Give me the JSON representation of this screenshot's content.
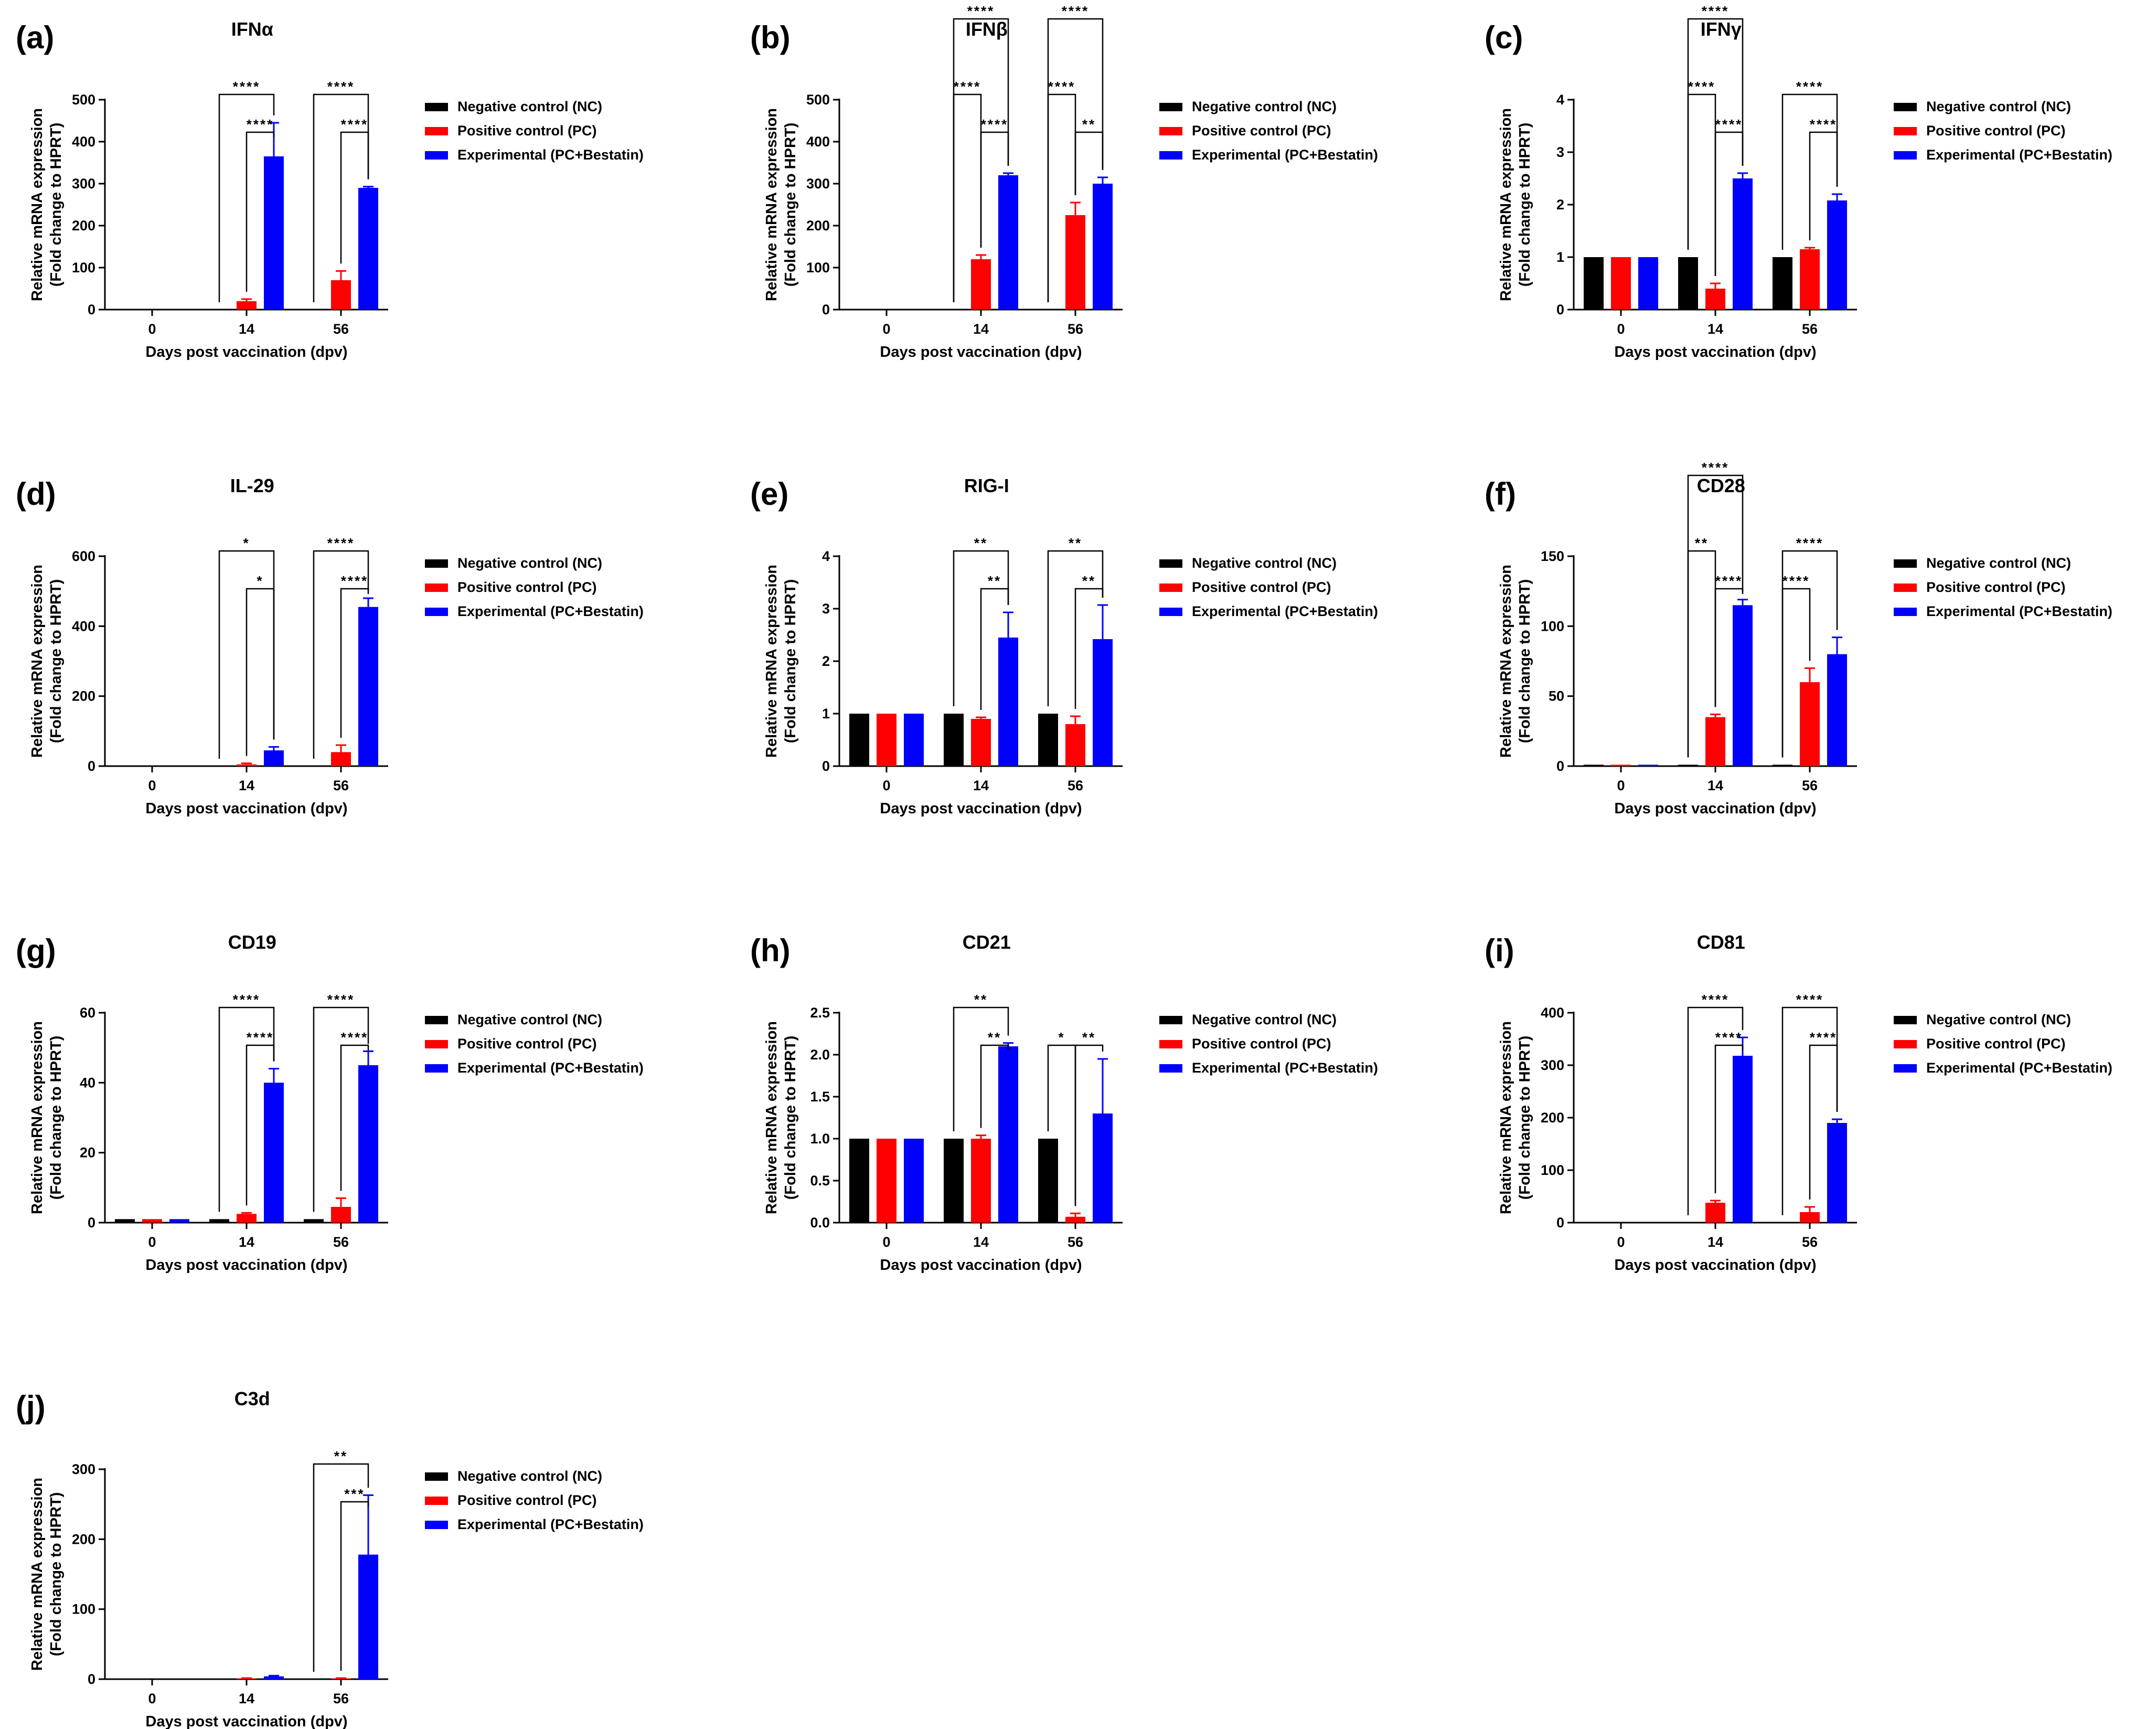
{
  "colors": {
    "nc": "#000000",
    "pc": "#ff0000",
    "exp": "#0000ff"
  },
  "chart_data": [
    {
      "letter": "(a)",
      "title": "IFNα",
      "type": "bar",
      "ylabel": [
        "Relative mRNA expression",
        "(Fold change to HPRT)"
      ],
      "xlabel": "Days post vaccination (dpv)",
      "categories": [
        "0",
        "14",
        "56"
      ],
      "ylim": [
        0,
        500
      ],
      "yticks": [
        0,
        100,
        200,
        300,
        400,
        500
      ],
      "ytick_labels": [
        "0",
        "100",
        "200",
        "300",
        "400",
        "500"
      ],
      "series": [
        {
          "name": "Negative control (NC)",
          "values": [
            0,
            0,
            0
          ],
          "errors": [
            0,
            0,
            0
          ]
        },
        {
          "name": "Positive control (PC)",
          "values": [
            0,
            20,
            70
          ],
          "errors": [
            0,
            5,
            22
          ]
        },
        {
          "name": "Experimental (PC+Bestatin)",
          "values": [
            0,
            365,
            290
          ],
          "errors": [
            0,
            80,
            3
          ]
        }
      ],
      "significance": [
        {
          "group": 1,
          "from": 0,
          "to": 2,
          "level": 1,
          "label": "****"
        },
        {
          "group": 1,
          "from": 1,
          "to": 2,
          "level": 0,
          "label": "****"
        },
        {
          "group": 2,
          "from": 0,
          "to": 2,
          "level": 1,
          "label": "****"
        },
        {
          "group": 2,
          "from": 1,
          "to": 2,
          "level": 0,
          "label": "****"
        }
      ],
      "legend": [
        "Negative control (NC)",
        "Positive control (PC)",
        "Experimental (PC+Bestatin)"
      ]
    },
    {
      "letter": "(b)",
      "title": "IFNβ",
      "type": "bar",
      "ylabel": [
        "Relative mRNA expression",
        "(Fold change to HPRT)"
      ],
      "xlabel": "Days post vaccination (dpv)",
      "categories": [
        "0",
        "14",
        "56"
      ],
      "ylim": [
        0,
        500
      ],
      "yticks": [
        0,
        100,
        200,
        300,
        400,
        500
      ],
      "ytick_labels": [
        "0",
        "100",
        "200",
        "300",
        "400",
        "500"
      ],
      "series": [
        {
          "name": "Negative control (NC)",
          "values": [
            0,
            0,
            0
          ],
          "errors": [
            0,
            0,
            0
          ]
        },
        {
          "name": "Positive control (PC)",
          "values": [
            0,
            120,
            225
          ],
          "errors": [
            0,
            10,
            30
          ]
        },
        {
          "name": "Experimental (PC+Bestatin)",
          "values": [
            0,
            320,
            300
          ],
          "errors": [
            0,
            5,
            15
          ]
        }
      ],
      "significance": [
        {
          "group": 1,
          "from": 0,
          "to": 2,
          "level": 2,
          "label": "****"
        },
        {
          "group": 1,
          "from": 0,
          "to": 1,
          "level": 1,
          "label": "****"
        },
        {
          "group": 1,
          "from": 1,
          "to": 2,
          "level": 0,
          "label": "****"
        },
        {
          "group": 2,
          "from": 0,
          "to": 2,
          "level": 2,
          "label": "****"
        },
        {
          "group": 2,
          "from": 0,
          "to": 1,
          "level": 1,
          "label": "****"
        },
        {
          "group": 2,
          "from": 1,
          "to": 2,
          "level": 0,
          "label": "**"
        }
      ],
      "legend": [
        "Negative control (NC)",
        "Positive control (PC)",
        "Experimental (PC+Bestatin)"
      ]
    },
    {
      "letter": "(c)",
      "title": "IFNγ",
      "type": "bar",
      "ylabel": [
        "Relative mRNA expression",
        "(Fold change to HPRT)"
      ],
      "xlabel": "Days post vaccination (dpv)",
      "categories": [
        "0",
        "14",
        "56"
      ],
      "ylim": [
        0,
        4
      ],
      "yticks": [
        0,
        1,
        2,
        3,
        4
      ],
      "ytick_labels": [
        "0",
        "1",
        "2",
        "3",
        "4"
      ],
      "series": [
        {
          "name": "Negative control (NC)",
          "values": [
            1,
            1,
            1
          ],
          "errors": [
            0,
            0,
            0
          ]
        },
        {
          "name": "Positive control (PC)",
          "values": [
            1,
            0.4,
            1.15
          ],
          "errors": [
            0,
            0.1,
            0.03
          ]
        },
        {
          "name": "Experimental (PC+Bestatin)",
          "values": [
            1,
            2.5,
            2.08
          ],
          "errors": [
            0,
            0.1,
            0.12
          ]
        }
      ],
      "significance": [
        {
          "group": 1,
          "from": 0,
          "to": 2,
          "level": 2,
          "label": "****"
        },
        {
          "group": 1,
          "from": 0,
          "to": 1,
          "level": 1,
          "label": "****"
        },
        {
          "group": 1,
          "from": 1,
          "to": 2,
          "level": 0,
          "label": "****"
        },
        {
          "group": 2,
          "from": 0,
          "to": 2,
          "level": 1,
          "label": "****"
        },
        {
          "group": 2,
          "from": 1,
          "to": 2,
          "level": 0,
          "label": "****"
        }
      ],
      "legend": [
        "Negative control (NC)",
        "Positive control (PC)",
        "Experimental (PC+Bestatin)"
      ]
    },
    {
      "letter": "(d)",
      "title": "IL-29",
      "type": "bar",
      "ylabel": [
        "Relative mRNA expression",
        "(Fold change to HPRT)"
      ],
      "xlabel": "Days post vaccination (dpv)",
      "categories": [
        "0",
        "14",
        "56"
      ],
      "ylim": [
        0,
        600
      ],
      "yticks": [
        0,
        200,
        400,
        600
      ],
      "ytick_labels": [
        "0",
        "200",
        "400",
        "600"
      ],
      "series": [
        {
          "name": "Negative control (NC)",
          "values": [
            0,
            0,
            0
          ],
          "errors": [
            0,
            0,
            0
          ]
        },
        {
          "name": "Positive control (PC)",
          "values": [
            0,
            5,
            40
          ],
          "errors": [
            0,
            3,
            20
          ]
        },
        {
          "name": "Experimental (PC+Bestatin)",
          "values": [
            0,
            45,
            455
          ],
          "errors": [
            0,
            10,
            25
          ]
        }
      ],
      "significance": [
        {
          "group": 1,
          "from": 0,
          "to": 2,
          "level": 1,
          "label": "*"
        },
        {
          "group": 1,
          "from": 1,
          "to": 2,
          "level": 0,
          "label": "*"
        },
        {
          "group": 2,
          "from": 0,
          "to": 2,
          "level": 1,
          "label": "****"
        },
        {
          "group": 2,
          "from": 1,
          "to": 2,
          "level": 0,
          "label": "****"
        }
      ],
      "legend": [
        "Negative control (NC)",
        "Positive control (PC)",
        "Experimental (PC+Bestatin)"
      ]
    },
    {
      "letter": "(e)",
      "title": "RIG-I",
      "type": "bar",
      "ylabel": [
        "Relative mRNA expression",
        "(Fold change to HPRT)"
      ],
      "xlabel": "Days post vaccination (dpv)",
      "categories": [
        "0",
        "14",
        "56"
      ],
      "ylim": [
        0,
        4
      ],
      "yticks": [
        0,
        1,
        2,
        3,
        4
      ],
      "ytick_labels": [
        "0",
        "1",
        "2",
        "3",
        "4"
      ],
      "series": [
        {
          "name": "Negative control (NC)",
          "values": [
            1,
            1,
            1
          ],
          "errors": [
            0,
            0,
            0
          ]
        },
        {
          "name": "Positive control (PC)",
          "values": [
            1,
            0.9,
            0.8
          ],
          "errors": [
            0,
            0.03,
            0.15
          ]
        },
        {
          "name": "Experimental (PC+Bestatin)",
          "values": [
            1,
            2.45,
            2.42
          ],
          "errors": [
            0,
            0.48,
            0.65
          ]
        }
      ],
      "significance": [
        {
          "group": 1,
          "from": 0,
          "to": 2,
          "level": 1,
          "label": "**"
        },
        {
          "group": 1,
          "from": 1,
          "to": 2,
          "level": 0,
          "label": "**"
        },
        {
          "group": 2,
          "from": 0,
          "to": 2,
          "level": 1,
          "label": "**"
        },
        {
          "group": 2,
          "from": 1,
          "to": 2,
          "level": 0,
          "label": "**"
        }
      ],
      "legend": [
        "Negative control (NC)",
        "Positive control (PC)",
        "Experimental (PC+Bestatin)"
      ]
    },
    {
      "letter": "(f)",
      "title": "CD28",
      "type": "bar",
      "ylabel": [
        "Relative mRNA expression",
        "(Fold change to HPRT)"
      ],
      "xlabel": "Days post vaccination (dpv)",
      "categories": [
        "0",
        "14",
        "56"
      ],
      "ylim": [
        0,
        150
      ],
      "yticks": [
        0,
        50,
        100,
        150
      ],
      "ytick_labels": [
        "0",
        "50",
        "100",
        "150"
      ],
      "series": [
        {
          "name": "Negative control (NC)",
          "values": [
            1,
            1,
            1
          ],
          "errors": [
            0,
            0,
            0
          ]
        },
        {
          "name": "Positive control (PC)",
          "values": [
            1,
            35,
            60
          ],
          "errors": [
            0,
            2,
            10
          ]
        },
        {
          "name": "Experimental (PC+Bestatin)",
          "values": [
            1,
            115,
            80
          ],
          "errors": [
            0,
            4,
            12
          ]
        }
      ],
      "significance": [
        {
          "group": 1,
          "from": 0,
          "to": 2,
          "level": 2,
          "label": "****"
        },
        {
          "group": 1,
          "from": 0,
          "to": 1,
          "level": 1,
          "label": "**"
        },
        {
          "group": 1,
          "from": 1,
          "to": 2,
          "level": 0,
          "label": "****"
        },
        {
          "group": 2,
          "from": 0,
          "to": 2,
          "level": 1,
          "label": "****"
        },
        {
          "group": 2,
          "from": 0,
          "to": 1,
          "level": 0,
          "label": "****"
        }
      ],
      "legend": [
        "Negative control (NC)",
        "Positive control (PC)",
        "Experimental (PC+Bestatin)"
      ]
    },
    {
      "letter": "(g)",
      "title": "CD19",
      "type": "bar",
      "ylabel": [
        "Relative mRNA expression",
        "(Fold change to HPRT)"
      ],
      "xlabel": "Days post vaccination (dpv)",
      "categories": [
        "0",
        "14",
        "56"
      ],
      "ylim": [
        0,
        60
      ],
      "yticks": [
        0,
        20,
        40,
        60
      ],
      "ytick_labels": [
        "0",
        "20",
        "40",
        "60"
      ],
      "series": [
        {
          "name": "Negative control (NC)",
          "values": [
            1,
            1,
            1
          ],
          "errors": [
            0,
            0,
            0
          ]
        },
        {
          "name": "Positive control (PC)",
          "values": [
            1,
            2.5,
            4.5
          ],
          "errors": [
            0,
            0.3,
            2.5
          ]
        },
        {
          "name": "Experimental (PC+Bestatin)",
          "values": [
            1,
            40,
            45
          ],
          "errors": [
            0,
            4,
            4
          ]
        }
      ],
      "significance": [
        {
          "group": 1,
          "from": 0,
          "to": 2,
          "level": 1,
          "label": "****"
        },
        {
          "group": 1,
          "from": 1,
          "to": 2,
          "level": 0,
          "label": "****"
        },
        {
          "group": 2,
          "from": 0,
          "to": 2,
          "level": 1,
          "label": "****"
        },
        {
          "group": 2,
          "from": 1,
          "to": 2,
          "level": 0,
          "label": "****"
        }
      ],
      "legend": [
        "Negative control (NC)",
        "Positive control (PC)",
        "Experimental (PC+Bestatin)"
      ]
    },
    {
      "letter": "(h)",
      "title": "CD21",
      "type": "bar",
      "ylabel": [
        "Relative mRNA expression",
        "(Fold change to HPRT)"
      ],
      "xlabel": "Days post vaccination (dpv)",
      "categories": [
        "0",
        "14",
        "56"
      ],
      "ylim": [
        0,
        2.5
      ],
      "yticks": [
        0,
        0.5,
        1,
        1.5,
        2,
        2.5
      ],
      "ytick_labels": [
        "0.0",
        "0.5",
        "1.0",
        "1.5",
        "2.0",
        "2.5"
      ],
      "series": [
        {
          "name": "Negative control (NC)",
          "values": [
            1,
            1,
            1
          ],
          "errors": [
            0,
            0,
            0
          ]
        },
        {
          "name": "Positive control (PC)",
          "values": [
            1,
            1.0,
            0.07
          ],
          "errors": [
            0,
            0.04,
            0.04
          ]
        },
        {
          "name": "Experimental (PC+Bestatin)",
          "values": [
            1,
            2.1,
            1.3
          ],
          "errors": [
            0,
            0.04,
            0.65
          ]
        }
      ],
      "significance": [
        {
          "group": 1,
          "from": 0,
          "to": 2,
          "level": 1,
          "label": "**"
        },
        {
          "group": 1,
          "from": 1,
          "to": 2,
          "level": 0,
          "label": "**"
        },
        {
          "group": 2,
          "from": 0,
          "to": 1,
          "level": 0,
          "label": "*"
        },
        {
          "group": 2,
          "from": 1,
          "to": 2,
          "level": 0,
          "label": "**"
        }
      ],
      "legend": [
        "Negative control (NC)",
        "Positive control (PC)",
        "Experimental (PC+Bestatin)"
      ]
    },
    {
      "letter": "(i)",
      "title": "CD81",
      "type": "bar",
      "ylabel": [
        "Relative mRNA expression",
        "(Fold change to HPRT)"
      ],
      "xlabel": "Days post vaccination (dpv)",
      "categories": [
        "0",
        "14",
        "56"
      ],
      "ylim": [
        0,
        400
      ],
      "yticks": [
        0,
        100,
        200,
        300,
        400
      ],
      "ytick_labels": [
        "0",
        "100",
        "200",
        "300",
        "400"
      ],
      "series": [
        {
          "name": "Negative control (NC)",
          "values": [
            0,
            0,
            0
          ],
          "errors": [
            0,
            0,
            0
          ]
        },
        {
          "name": "Positive control (PC)",
          "values": [
            0,
            38,
            20
          ],
          "errors": [
            0,
            4,
            10
          ]
        },
        {
          "name": "Experimental (PC+Bestatin)",
          "values": [
            0,
            318,
            190
          ],
          "errors": [
            0,
            35,
            7
          ]
        }
      ],
      "significance": [
        {
          "group": 1,
          "from": 0,
          "to": 2,
          "level": 1,
          "label": "****"
        },
        {
          "group": 1,
          "from": 1,
          "to": 2,
          "level": 0,
          "label": "****"
        },
        {
          "group": 2,
          "from": 0,
          "to": 2,
          "level": 1,
          "label": "****"
        },
        {
          "group": 2,
          "from": 1,
          "to": 2,
          "level": 0,
          "label": "****"
        }
      ],
      "legend": [
        "Negative control (NC)",
        "Positive control (PC)",
        "Experimental (PC+Bestatin)"
      ]
    },
    {
      "letter": "(j)",
      "title": "C3d",
      "type": "bar",
      "ylabel": [
        "Relative mRNA expression",
        "(Fold change to HPRT)"
      ],
      "xlabel": "Days post vaccination (dpv)",
      "categories": [
        "0",
        "14",
        "56"
      ],
      "ylim": [
        0,
        300
      ],
      "yticks": [
        0,
        100,
        200,
        300
      ],
      "ytick_labels": [
        "0",
        "100",
        "200",
        "300"
      ],
      "series": [
        {
          "name": "Negative control (NC)",
          "values": [
            0,
            0,
            0
          ],
          "errors": [
            0,
            0,
            0
          ]
        },
        {
          "name": "Positive control (PC)",
          "values": [
            0,
            1,
            1
          ],
          "errors": [
            0,
            0.5,
            0.5
          ]
        },
        {
          "name": "Experimental (PC+Bestatin)",
          "values": [
            0,
            4,
            178
          ],
          "errors": [
            0,
            1,
            85
          ]
        }
      ],
      "significance": [
        {
          "group": 2,
          "from": 0,
          "to": 2,
          "level": 1,
          "label": "**"
        },
        {
          "group": 2,
          "from": 1,
          "to": 2,
          "level": 0,
          "label": "***"
        }
      ],
      "legend": [
        "Negative control (NC)",
        "Positive control (PC)",
        "Experimental (PC+Bestatin)"
      ]
    }
  ]
}
